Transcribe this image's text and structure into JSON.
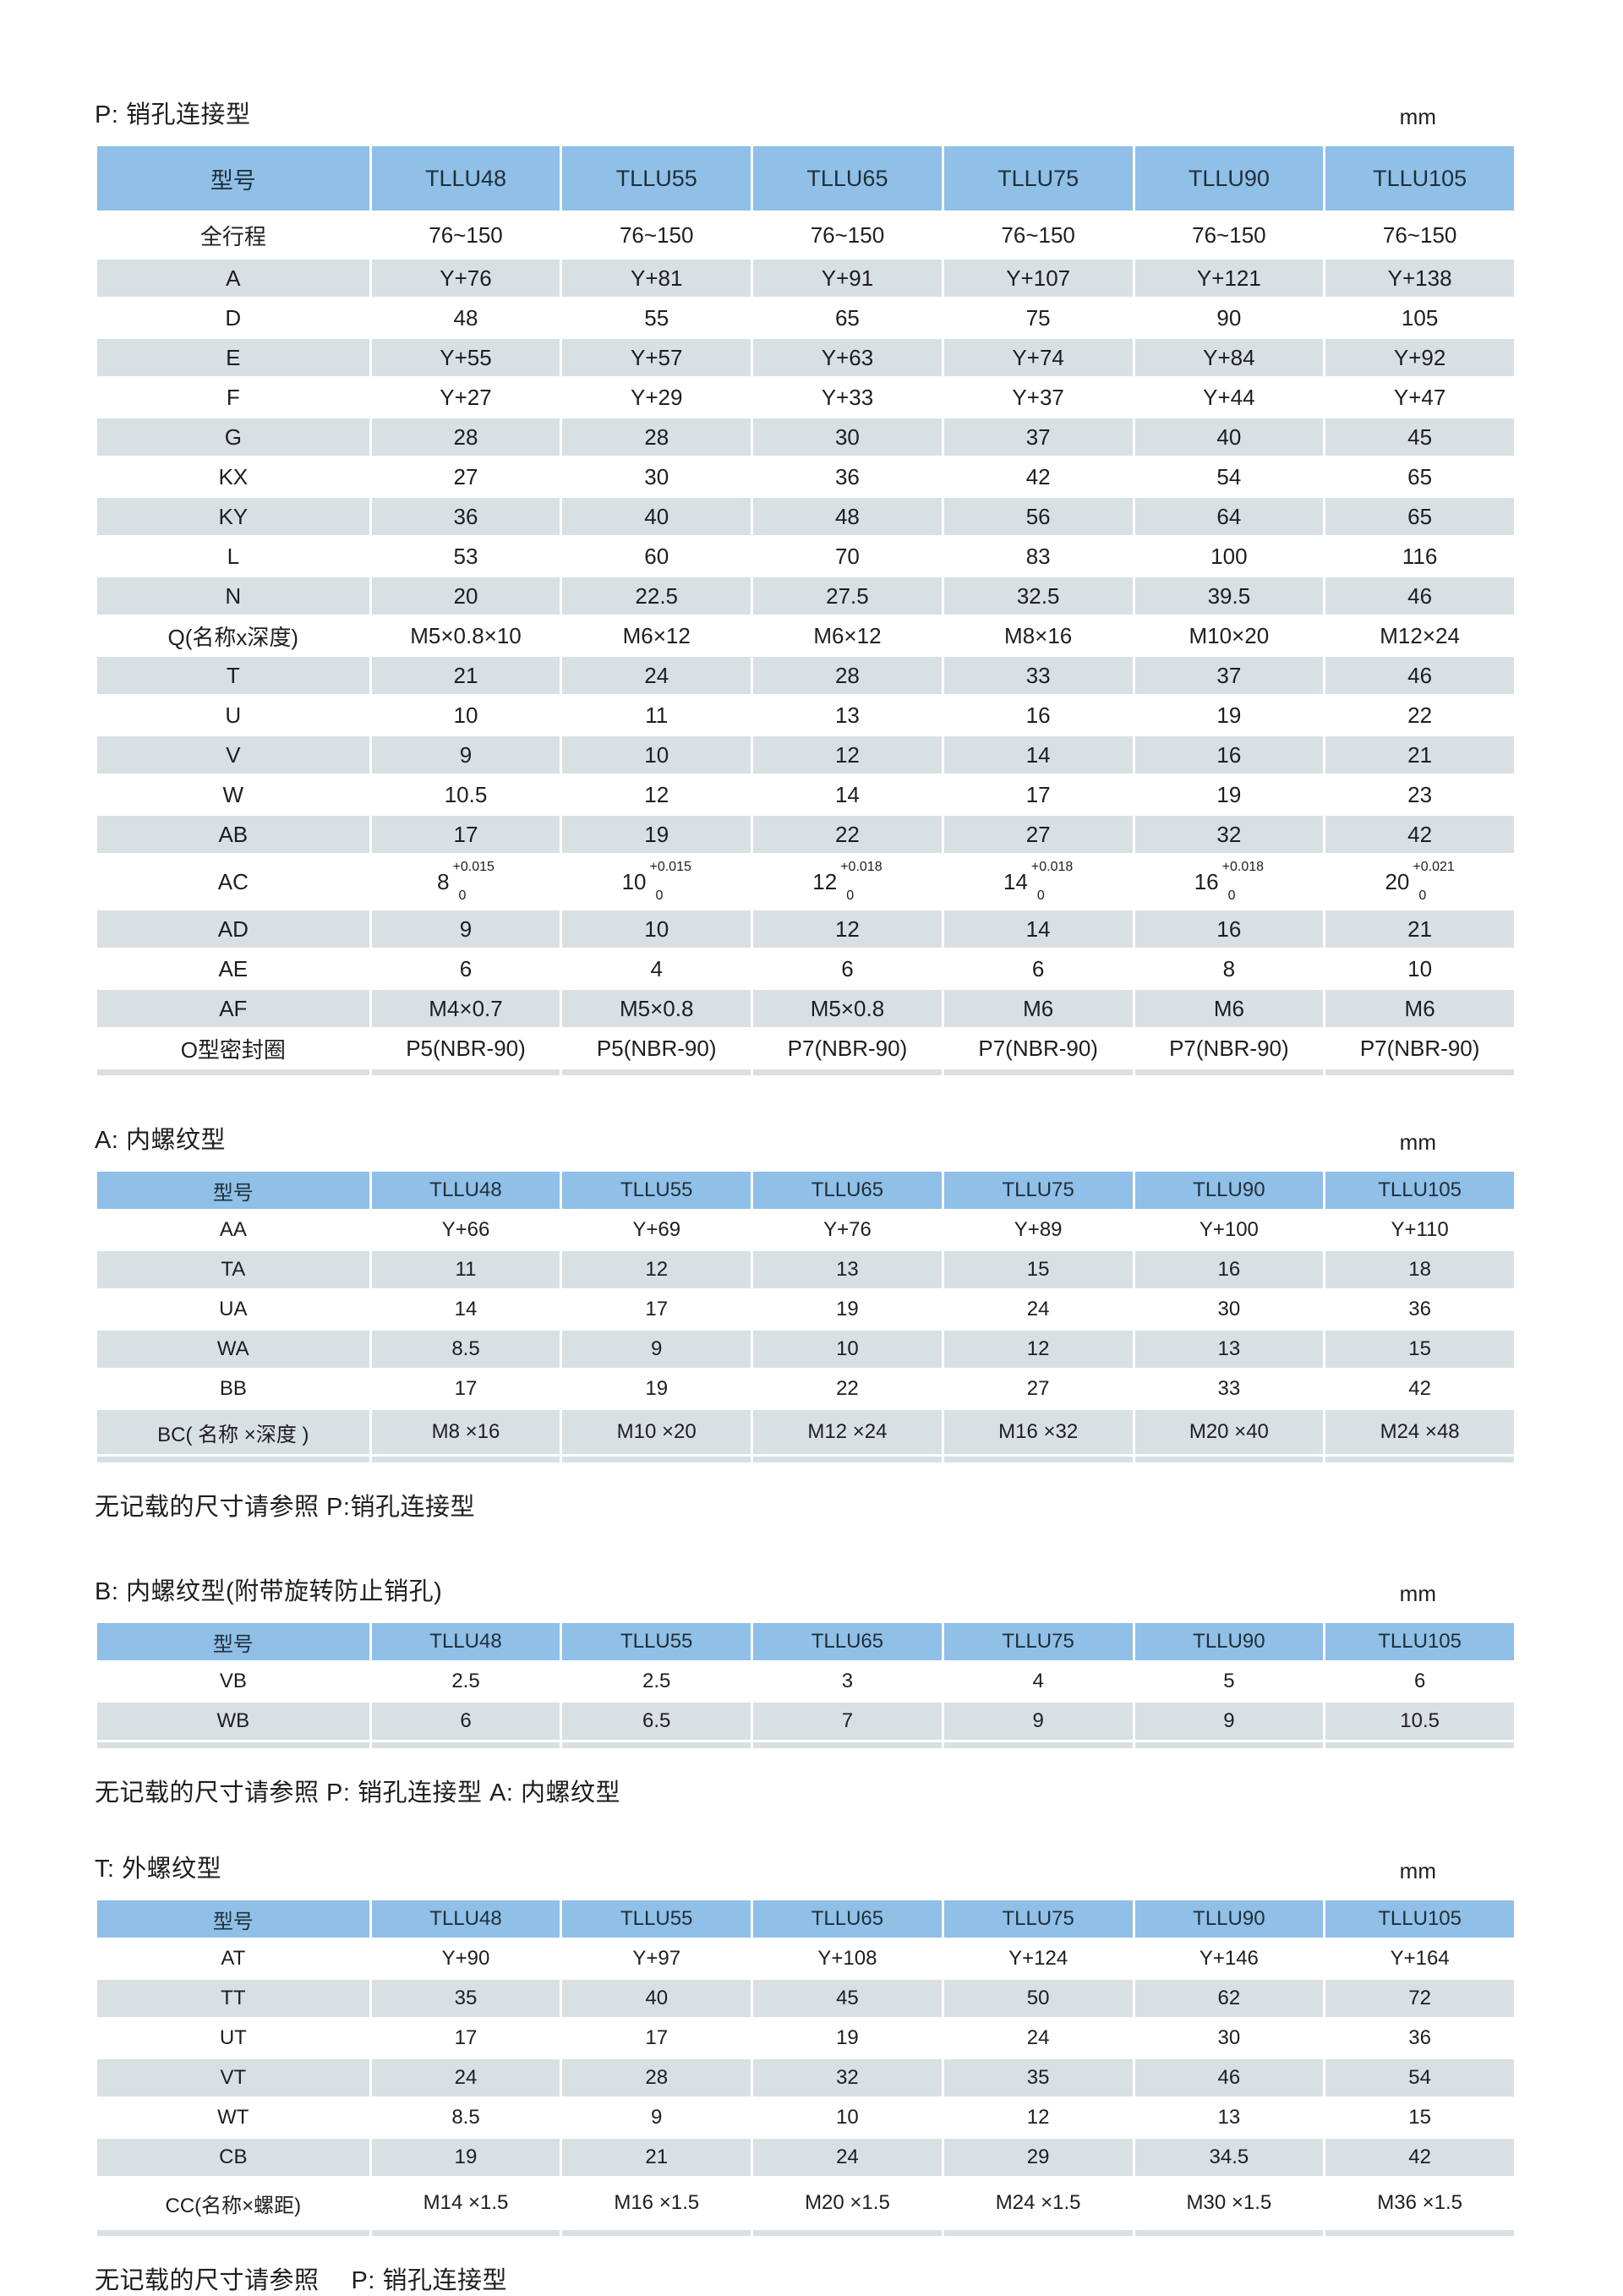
{
  "tables": [
    {
      "title": "P: 销孔连接型",
      "unit": "mm",
      "columns": [
        "型号",
        "TLLU48",
        "TLLU55",
        "TLLU65",
        "TLLU75",
        "TLLU90",
        "TLLU105"
      ],
      "rows": [
        {
          "label": "全行程",
          "size": "tall",
          "values": [
            "76~150",
            "76~150",
            "76~150",
            "76~150",
            "76~150",
            "76~150"
          ]
        },
        {
          "label": "A",
          "values": [
            "Y+76",
            "Y+81",
            "Y+91",
            "Y+107",
            "Y+121",
            "Y+138"
          ]
        },
        {
          "label": "D",
          "values": [
            "48",
            "55",
            "65",
            "75",
            "90",
            "105"
          ]
        },
        {
          "label": "E",
          "values": [
            "Y+55",
            "Y+57",
            "Y+63",
            "Y+74",
            "Y+84",
            "Y+92"
          ]
        },
        {
          "label": "F",
          "values": [
            "Y+27",
            "Y+29",
            "Y+33",
            "Y+37",
            "Y+44",
            "Y+47"
          ]
        },
        {
          "label": "G",
          "values": [
            "28",
            "28",
            "30",
            "37",
            "40",
            "45"
          ]
        },
        {
          "label": "KX",
          "values": [
            "27",
            "30",
            "36",
            "42",
            "54",
            "65"
          ]
        },
        {
          "label": "KY",
          "values": [
            "36",
            "40",
            "48",
            "56",
            "64",
            "65"
          ]
        },
        {
          "label": "L",
          "values": [
            "53",
            "60",
            "70",
            "83",
            "100",
            "116"
          ]
        },
        {
          "label": "N",
          "values": [
            "20",
            "22.5",
            "27.5",
            "32.5",
            "39.5",
            "46"
          ]
        },
        {
          "label": "Q(名称x深度)",
          "values": [
            "M5×0.8×10",
            "M6×12",
            "M6×12",
            "M8×16",
            "M10×20",
            "M12×24"
          ]
        },
        {
          "label": "T",
          "values": [
            "21",
            "24",
            "28",
            "33",
            "37",
            "46"
          ]
        },
        {
          "label": "U",
          "values": [
            "10",
            "11",
            "13",
            "16",
            "19",
            "22"
          ]
        },
        {
          "label": "V",
          "values": [
            "9",
            "10",
            "12",
            "14",
            "16",
            "21"
          ]
        },
        {
          "label": "W",
          "values": [
            "10.5",
            "12",
            "14",
            "17",
            "19",
            "23"
          ]
        },
        {
          "label": "AB",
          "values": [
            "17",
            "19",
            "22",
            "27",
            "32",
            "42"
          ]
        },
        {
          "label": "AC",
          "size": "xtall",
          "values": [
            {
              "base": "8",
              "sup": "+0.015",
              "sub": "0"
            },
            {
              "base": "10",
              "sup": "+0.015",
              "sub": "0"
            },
            {
              "base": "12",
              "sup": "+0.018",
              "sub": "0"
            },
            {
              "base": "14",
              "sup": "+0.018",
              "sub": "0"
            },
            {
              "base": "16",
              "sup": "+0.018",
              "sub": "0"
            },
            {
              "base": "20",
              "sup": "+0.021",
              "sub": "0"
            }
          ]
        },
        {
          "label": "AD",
          "values": [
            "9",
            "10",
            "12",
            "14",
            "16",
            "21"
          ]
        },
        {
          "label": "AE",
          "values": [
            "6",
            "4",
            "6",
            "6",
            "8",
            "10"
          ]
        },
        {
          "label": "AF",
          "values": [
            "M4×0.7",
            "M5×0.8",
            "M5×0.8",
            "M6",
            "M6",
            "M6"
          ]
        },
        {
          "label": "O型密封圈",
          "values": [
            "P5(NBR-90)",
            "P5(NBR-90)",
            "P7(NBR-90)",
            "P7(NBR-90)",
            "P7(NBR-90)",
            "P7(NBR-90)"
          ]
        }
      ]
    },
    {
      "title": "A: 内螺纹型",
      "unit": "mm",
      "columns": [
        "型号",
        "TLLU48",
        "TLLU55",
        "TLLU65",
        "TLLU75",
        "TLLU90",
        "TLLU105"
      ],
      "rows": [
        {
          "label": "AA",
          "values": [
            "Y+66",
            "Y+69",
            "Y+76",
            "Y+89",
            "Y+100",
            "Y+110"
          ]
        },
        {
          "label": "TA",
          "values": [
            "11",
            "12",
            "13",
            "15",
            "16",
            "18"
          ]
        },
        {
          "label": "UA",
          "values": [
            "14",
            "17",
            "19",
            "24",
            "30",
            "36"
          ]
        },
        {
          "label": "WA",
          "values": [
            "8.5",
            "9",
            "10",
            "12",
            "13",
            "15"
          ]
        },
        {
          "label": "BB",
          "values": [
            "17",
            "19",
            "22",
            "27",
            "33",
            "42"
          ]
        },
        {
          "label": "BC( 名称 ×深度 )",
          "size": "mtall",
          "values": [
            "M8 ×16",
            "M10 ×20",
            "M12 ×24",
            "M16 ×32",
            "M20 ×40",
            "M24 ×48"
          ]
        }
      ],
      "footnote": "无记载的尺寸请参照 P:销孔连接型"
    },
    {
      "title": "B: 内螺纹型(附带旋转防止销孔)",
      "unit": "mm",
      "columns": [
        "型号",
        "TLLU48",
        "TLLU55",
        "TLLU65",
        "TLLU75",
        "TLLU90",
        "TLLU105"
      ],
      "rows": [
        {
          "label": "VB",
          "values": [
            "2.5",
            "2.5",
            "3",
            "4",
            "5",
            "6"
          ]
        },
        {
          "label": "WB",
          "values": [
            "6",
            "6.5",
            "7",
            "9",
            "9",
            "10.5"
          ]
        }
      ],
      "footnote": "无记载的尺寸请参照 P: 销孔连接型 A: 内螺纹型"
    },
    {
      "title": "T: 外螺纹型",
      "unit": "mm",
      "columns": [
        "型号",
        "TLLU48",
        "TLLU55",
        "TLLU65",
        "TLLU75",
        "TLLU90",
        "TLLU105"
      ],
      "rows": [
        {
          "label": "AT",
          "values": [
            "Y+90",
            "Y+97",
            "Y+108",
            "Y+124",
            "Y+146",
            "Y+164"
          ]
        },
        {
          "label": "TT",
          "values": [
            "35",
            "40",
            "45",
            "50",
            "62",
            "72"
          ]
        },
        {
          "label": "UT",
          "values": [
            "17",
            "17",
            "19",
            "24",
            "30",
            "36"
          ]
        },
        {
          "label": "VT",
          "values": [
            "24",
            "28",
            "32",
            "35",
            "46",
            "54"
          ]
        },
        {
          "label": "WT",
          "values": [
            "8.5",
            "9",
            "10",
            "12",
            "13",
            "15"
          ]
        },
        {
          "label": "CB",
          "values": [
            "19",
            "21",
            "24",
            "29",
            "34.5",
            "42"
          ]
        },
        {
          "label": "CC(名称×螺距)",
          "size": "cctall",
          "values": [
            "M14 ×1.5",
            "M16 ×1.5",
            "M20 ×1.5",
            "M24 ×1.5",
            "M30 ×1.5",
            "M36 ×1.5"
          ]
        }
      ],
      "footnote": "无记载的尺寸请参照　 P: 销孔连接型"
    }
  ]
}
